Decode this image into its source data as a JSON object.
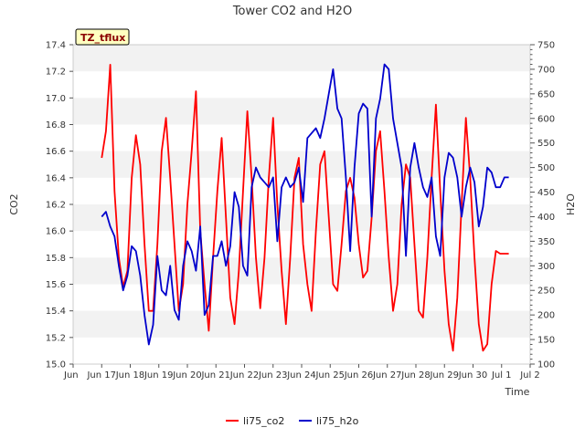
{
  "chart_data": {
    "type": "line",
    "title": "Tower CO2 and H2O",
    "badge": "TZ_tflux",
    "xlabel": "Time",
    "ylabel_left": "CO2",
    "ylabel_right": "H2O",
    "x_ticks": [
      "Jun 17",
      "Jun 18",
      "Jun 19",
      "Jun 20",
      "Jun 21",
      "Jun 22",
      "Jun 23",
      "Jun 24",
      "Jun 25",
      "Jun 26",
      "Jun 27",
      "Jun 28",
      "Jun 29",
      "Jun 30",
      "Jul 1",
      "Jul 2"
    ],
    "xlim": [
      "Jun 16",
      "Jul 2"
    ],
    "ylim_left": [
      15.0,
      17.4
    ],
    "yticks_left": [
      "15.0",
      "15.2",
      "15.4",
      "15.6",
      "15.8",
      "16.0",
      "16.2",
      "16.4",
      "16.6",
      "16.8",
      "17.0",
      "17.2",
      "17.4"
    ],
    "ylim_right": [
      100,
      750
    ],
    "yticks_right": [
      "100",
      "150",
      "200",
      "250",
      "300",
      "350",
      "400",
      "450",
      "500",
      "550",
      "600",
      "650",
      "700",
      "750"
    ],
    "grid": "horizontal alternating bands",
    "legend": "bottom",
    "colors": {
      "co2": "#ff0000",
      "h2o": "#0000cc",
      "band": "#f2f2f2",
      "badge_bg": "#ffffc0",
      "badge_border": "#000000"
    },
    "series": [
      {
        "name": "li75_co2",
        "axis": "left",
        "x": [
          17.0,
          17.15,
          17.3,
          17.45,
          17.6,
          17.75,
          17.9,
          18.05,
          18.2,
          18.35,
          18.5,
          18.65,
          18.8,
          18.95,
          19.1,
          19.25,
          19.4,
          19.55,
          19.7,
          19.85,
          20.0,
          20.15,
          20.3,
          20.45,
          20.6,
          20.75,
          20.9,
          21.05,
          21.2,
          21.35,
          21.5,
          21.65,
          21.8,
          21.95,
          22.1,
          22.25,
          22.4,
          22.55,
          22.7,
          22.85,
          23.0,
          23.15,
          23.3,
          23.45,
          23.6,
          23.75,
          23.9,
          24.05,
          24.2,
          24.35,
          24.5,
          24.65,
          24.8,
          24.95,
          25.1,
          25.25,
          25.4,
          25.55,
          25.7,
          25.85,
          26.0,
          26.15,
          26.3,
          26.45,
          26.6,
          26.75,
          26.9,
          27.05,
          27.2,
          27.35,
          27.5,
          27.65,
          27.8,
          27.95,
          28.1,
          28.25,
          28.4,
          28.55,
          28.7,
          28.85,
          29.0,
          29.15,
          29.3,
          29.45,
          29.6,
          29.75,
          29.9,
          30.05,
          30.2,
          30.35,
          30.5,
          30.65,
          30.8,
          30.95,
          31.1,
          31.25
        ],
        "values": [
          16.55,
          16.75,
          17.25,
          16.3,
          15.8,
          15.58,
          15.7,
          16.4,
          16.72,
          16.5,
          15.9,
          15.4,
          15.4,
          15.9,
          16.6,
          16.85,
          16.4,
          15.9,
          15.4,
          15.6,
          16.2,
          16.6,
          17.05,
          16.0,
          15.6,
          15.25,
          15.8,
          16.3,
          16.7,
          16.1,
          15.5,
          15.3,
          15.7,
          16.3,
          16.9,
          16.4,
          15.8,
          15.42,
          15.8,
          16.4,
          16.85,
          16.2,
          15.7,
          15.3,
          15.8,
          16.4,
          16.55,
          15.9,
          15.6,
          15.4,
          16.0,
          16.5,
          16.6,
          16.1,
          15.6,
          15.55,
          15.9,
          16.3,
          16.4,
          16.25,
          15.9,
          15.65,
          15.7,
          16.1,
          16.6,
          16.75,
          16.3,
          15.8,
          15.4,
          15.6,
          16.2,
          16.5,
          16.4,
          15.9,
          15.4,
          15.35,
          15.8,
          16.4,
          16.95,
          16.3,
          15.7,
          15.3,
          15.1,
          15.5,
          16.2,
          16.85,
          16.4,
          15.8,
          15.3,
          15.1,
          15.15,
          15.6,
          15.85,
          15.83,
          15.83,
          15.83
        ]
      },
      {
        "name": "li75_h2o",
        "axis": "right",
        "x": [
          17.0,
          17.15,
          17.3,
          17.45,
          17.6,
          17.75,
          17.9,
          18.05,
          18.2,
          18.35,
          18.5,
          18.65,
          18.8,
          18.95,
          19.1,
          19.25,
          19.4,
          19.55,
          19.7,
          19.85,
          20.0,
          20.15,
          20.3,
          20.45,
          20.6,
          20.75,
          20.9,
          21.05,
          21.2,
          21.35,
          21.5,
          21.65,
          21.8,
          21.95,
          22.1,
          22.25,
          22.4,
          22.55,
          22.7,
          22.85,
          23.0,
          23.15,
          23.3,
          23.45,
          23.6,
          23.75,
          23.9,
          24.05,
          24.2,
          24.35,
          24.5,
          24.65,
          24.8,
          24.95,
          25.1,
          25.25,
          25.4,
          25.55,
          25.7,
          25.85,
          26.0,
          26.15,
          26.3,
          26.45,
          26.6,
          26.75,
          26.9,
          27.05,
          27.2,
          27.35,
          27.5,
          27.65,
          27.8,
          27.95,
          28.1,
          28.25,
          28.4,
          28.55,
          28.7,
          28.85,
          29.0,
          29.15,
          29.3,
          29.45,
          29.6,
          29.75,
          29.9,
          30.05,
          30.2,
          30.35,
          30.5,
          30.65,
          30.8,
          30.95,
          31.1,
          31.25
        ],
        "values": [
          400,
          410,
          380,
          360,
          300,
          250,
          280,
          340,
          330,
          280,
          200,
          140,
          180,
          320,
          250,
          240,
          300,
          210,
          190,
          300,
          350,
          330,
          290,
          380,
          200,
          220,
          320,
          320,
          350,
          300,
          340,
          450,
          420,
          300,
          280,
          460,
          500,
          480,
          470,
          460,
          480,
          350,
          460,
          480,
          460,
          470,
          500,
          430,
          560,
          570,
          580,
          560,
          600,
          650,
          700,
          620,
          600,
          480,
          330,
          500,
          610,
          630,
          620,
          400,
          600,
          640,
          710,
          700,
          600,
          550,
          500,
          320,
          500,
          550,
          500,
          460,
          440,
          480,
          360,
          320,
          480,
          530,
          520,
          480,
          400,
          460,
          500,
          470,
          380,
          420,
          500,
          490,
          460,
          460,
          480,
          480
        ]
      }
    ]
  }
}
